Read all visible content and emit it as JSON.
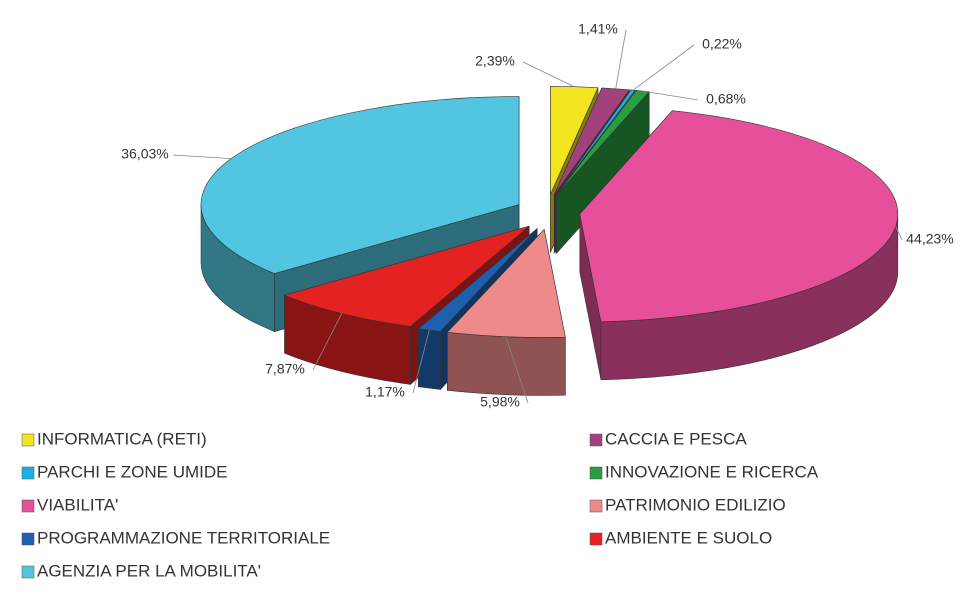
{
  "chart_data": {
    "type": "pie3d",
    "categories": [
      "INFORMATICA (RETI)",
      "CACCIA E PESCA",
      "PARCHI E ZONE UMIDE",
      "INNOVAZIONE E RICERCA",
      "VIABILITA'",
      "PATRIMONIO EDILIZIO",
      "PROGRAMMAZIONE TERRITORIALE",
      "AMBIENTE E SUOLO",
      "AGENZIA PER LA MOBILITA'"
    ],
    "values": [
      2.39,
      1.41,
      0.22,
      0.68,
      44.23,
      5.98,
      1.17,
      7.87,
      36.03
    ],
    "value_labels": [
      "2,39%",
      "1,41%",
      "0,22%",
      "0,68%",
      "44,23%",
      "5,98%",
      "1,17%",
      "7,87%",
      "36,03%"
    ],
    "colors": [
      "#f2e41e",
      "#a2417c",
      "#19b0e2",
      "#2a9d3e",
      "#e6509b",
      "#ef8a8a",
      "#1f5faf",
      "#e52222",
      "#52c6e0"
    ],
    "legend": "bottom"
  }
}
